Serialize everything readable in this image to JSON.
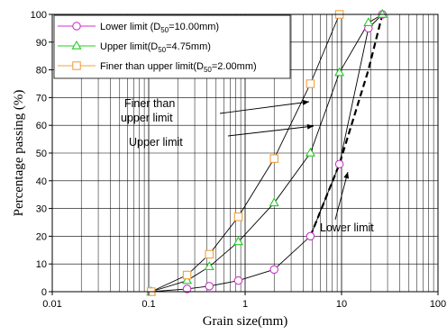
{
  "chart_data": {
    "type": "line",
    "title": "",
    "xlabel": "Grain size(mm)",
    "ylabel": "Percentage passing (%)",
    "x_scale": "log",
    "xlim": [
      0.01,
      100
    ],
    "ylim": [
      0,
      100
    ],
    "grid": true,
    "legend_position": "top-left",
    "x_ticks": [
      "0.01",
      "0.1",
      "1",
      "10",
      "100"
    ],
    "y_ticks": [
      "0",
      "10",
      "20",
      "30",
      "40",
      "50",
      "60",
      "70",
      "80",
      "90",
      "100"
    ],
    "series": [
      {
        "label_parts": [
          "Lower limit (D",
          "50",
          "=10.00mm)"
        ],
        "marker": "circle",
        "color": "#cc33cc",
        "x": [
          0.106,
          0.25,
          0.425,
          0.85,
          2.0,
          4.75,
          9.5,
          19,
          26.5
        ],
        "y": [
          0,
          1,
          2,
          4,
          8,
          20,
          46,
          95,
          100
        ]
      },
      {
        "label_parts": [
          "Upper limit(D",
          "50",
          "=4.75mm)"
        ],
        "marker": "triangle",
        "color": "#22cc22",
        "x": [
          0.106,
          0.25,
          0.425,
          0.85,
          2.0,
          4.75,
          9.5,
          19,
          26.5
        ],
        "y": [
          0,
          4,
          9,
          18,
          32,
          50,
          79,
          97,
          100
        ]
      },
      {
        "label_parts": [
          "Finer than upper limit(D",
          "50",
          "=2.00mm)"
        ],
        "marker": "square",
        "color": "#f0a040",
        "x": [
          0.106,
          0.25,
          0.425,
          0.85,
          2.0,
          4.75,
          9.5
        ],
        "y": [
          0,
          6,
          13.5,
          27,
          48,
          75,
          100
        ]
      }
    ],
    "dashed_line": {
      "x": [
        4.75,
        9.5,
        19,
        26.5
      ],
      "y": [
        20,
        46,
        80,
        100
      ]
    },
    "annotations": [
      {
        "lines": [
          "Finer than",
          "upper limit"
        ]
      },
      {
        "lines": [
          "Upper limit"
        ]
      },
      {
        "lines": [
          "Lower limit"
        ]
      }
    ]
  }
}
